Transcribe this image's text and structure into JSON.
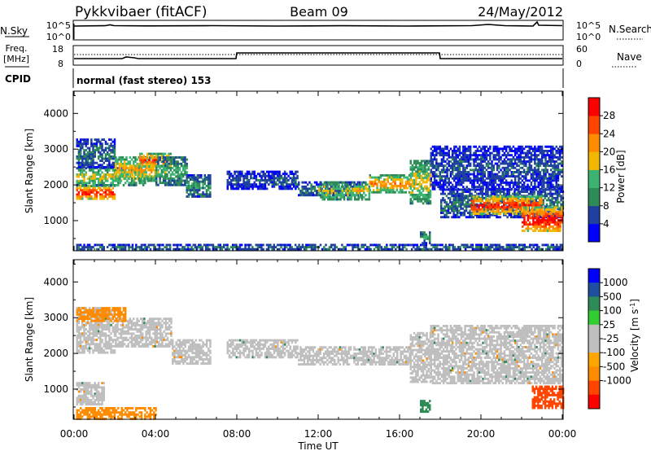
{
  "header": {
    "title": "Pykkvibaer (fitACF)",
    "beam": "Beam 09",
    "date": "24/May/2012"
  },
  "nsky_panel": {
    "left_label": "N.Sky",
    "left_ticks": [
      "10^5",
      "10^0"
    ],
    "right_label": "N.Search",
    "right_ticks": [
      "10^5",
      "10^0"
    ]
  },
  "freq_panel": {
    "left_label_line1": "Freq.",
    "left_label_line2": "[MHz]",
    "left_ticks": [
      "18",
      "8"
    ],
    "right_label": "Nave",
    "right_ticks": [
      "60",
      "0"
    ]
  },
  "cpid": {
    "label": "CPID",
    "value": "normal (fast stereo) 153"
  },
  "x_axis": {
    "label": "Time UT",
    "ticks": [
      "00:00",
      "04:00",
      "08:00",
      "12:00",
      "16:00",
      "20:00",
      "00:00"
    ]
  },
  "colors": {
    "power_scale": [
      "#0000ff",
      "#2040a0",
      "#2e8b57",
      "#3cb371",
      "#f2b705",
      "#ff8c00",
      "#ff4500",
      "#ff0000"
    ],
    "velocity_scale": [
      "#ff0000",
      "#ff4500",
      "#ff8c00",
      "#ffa500",
      "#bfbfbf",
      "#bfbfbf",
      "#32cd32",
      "#2e8b57",
      "#1e4fa0",
      "#0000ff"
    ]
  },
  "chart_data": [
    {
      "type": "heatmap",
      "panel": "power",
      "ylabel": "Slant Range [km]",
      "ylim": [
        180,
        4600
      ],
      "yticks": [
        1000,
        2000,
        3000,
        4000
      ],
      "xlim_hours": [
        0,
        24
      ],
      "colorbar": {
        "label": "Power [dB]",
        "range": [
          0,
          32
        ],
        "ticks": [
          "4",
          "8",
          "12",
          "16",
          "20",
          "24",
          "28"
        ]
      },
      "bands": [
        {
          "x": [
            0.1,
            2.0
          ],
          "y": [
            1600,
            2000
          ],
          "value": 26
        },
        {
          "x": [
            0.1,
            3.5
          ],
          "y": [
            2000,
            2500
          ],
          "value": 16
        },
        {
          "x": [
            0.1,
            2.0
          ],
          "y": [
            2500,
            3300
          ],
          "value": 8
        },
        {
          "x": [
            2.0,
            4.0
          ],
          "y": [
            2100,
            2800
          ],
          "value": 18
        },
        {
          "x": [
            3.2,
            4.7
          ],
          "y": [
            2500,
            2900
          ],
          "value": 24
        },
        {
          "x": [
            4.0,
            5.5
          ],
          "y": [
            2000,
            2800
          ],
          "value": 12
        },
        {
          "x": [
            5.5,
            6.7
          ],
          "y": [
            1700,
            2300
          ],
          "value": 10
        },
        {
          "x": [
            7.5,
            11.0
          ],
          "y": [
            1900,
            2400
          ],
          "value": 6
        },
        {
          "x": [
            11.0,
            14.0
          ],
          "y": [
            1700,
            2100
          ],
          "value": 8
        },
        {
          "x": [
            12.0,
            14.5
          ],
          "y": [
            1600,
            2100
          ],
          "value": 16
        },
        {
          "x": [
            14.5,
            16.5
          ],
          "y": [
            1800,
            2300
          ],
          "value": 20
        },
        {
          "x": [
            16.5,
            17.5
          ],
          "y": [
            1500,
            2700
          ],
          "value": 16
        },
        {
          "x": [
            17.0,
            17.5
          ],
          "y": [
            400,
            700
          ],
          "value": 12
        },
        {
          "x": [
            17.5,
            24.0
          ],
          "y": [
            1900,
            3100
          ],
          "value": 6
        },
        {
          "x": [
            18.0,
            24.0
          ],
          "y": [
            1100,
            1900
          ],
          "value": 8
        },
        {
          "x": [
            19.5,
            23.0
          ],
          "y": [
            1200,
            1700
          ],
          "value": 26
        },
        {
          "x": [
            22.0,
            24.0
          ],
          "y": [
            700,
            1400
          ],
          "value": 28
        },
        {
          "x": [
            0.1,
            24.0
          ],
          "y": [
            200,
            350
          ],
          "value": 8
        }
      ]
    },
    {
      "type": "heatmap",
      "panel": "velocity",
      "ylabel": "Slant Range [km]",
      "ylim": [
        180,
        4600
      ],
      "yticks": [
        1000,
        2000,
        3000,
        4000
      ],
      "xlim_hours": [
        0,
        24
      ],
      "colorbar": {
        "label": "Velocity [m s^-1]",
        "ticks": [
          "1000",
          "500",
          "100",
          "25",
          "-25",
          "-100",
          "-500",
          "-1000"
        ]
      },
      "bands": [
        {
          "x": [
            0.1,
            2.0
          ],
          "y": [
            2000,
            3300
          ],
          "value": 0
        },
        {
          "x": [
            2.0,
            4.8
          ],
          "y": [
            2200,
            3000
          ],
          "value": 0
        },
        {
          "x": [
            4.8,
            6.7
          ],
          "y": [
            1700,
            2400
          ],
          "value": 0
        },
        {
          "x": [
            7.5,
            11.0
          ],
          "y": [
            1900,
            2400
          ],
          "value": 0
        },
        {
          "x": [
            11.0,
            16.5
          ],
          "y": [
            1700,
            2200
          ],
          "value": 0
        },
        {
          "x": [
            16.5,
            17.5
          ],
          "y": [
            1200,
            2600
          ],
          "value": 0
        },
        {
          "x": [
            17.5,
            24.0
          ],
          "y": [
            1200,
            2800
          ],
          "value": 0
        },
        {
          "x": [
            0.1,
            1.5
          ],
          "y": [
            600,
            1200
          ],
          "value": 0
        },
        {
          "x": [
            0.1,
            2.5
          ],
          "y": [
            2900,
            3300
          ],
          "value": -200
        },
        {
          "x": [
            0.1,
            4.0
          ],
          "y": [
            200,
            500
          ],
          "value": -200
        },
        {
          "x": [
            17.0,
            17.5
          ],
          "y": [
            400,
            700
          ],
          "value": 300
        },
        {
          "x": [
            22.5,
            24.0
          ],
          "y": [
            500,
            1100
          ],
          "value": -700
        }
      ]
    }
  ]
}
